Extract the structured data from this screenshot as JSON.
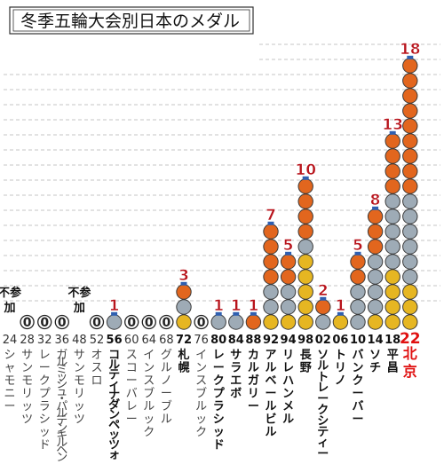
{
  "chart_data": {
    "type": "bar",
    "title": "冬季五輪大会別日本のメダル",
    "series": [
      {
        "key": "gold",
        "color": "#e6b622"
      },
      {
        "key": "silver",
        "color": "#9eabb6"
      },
      {
        "key": "bronze",
        "color": "#e2661e"
      }
    ],
    "no_participation_label": "不参加",
    "categories": [
      {
        "year": "24",
        "city": "シャモニー",
        "gold": 0,
        "silver": 0,
        "bronze": 0,
        "total": null,
        "no_participation": true
      },
      {
        "year": "28",
        "city": "サンモリッツ",
        "gold": 0,
        "silver": 0,
        "bronze": 0,
        "total": "0"
      },
      {
        "year": "32",
        "city": "レークプラシッド",
        "gold": 0,
        "silver": 0,
        "bronze": 0,
        "total": "0"
      },
      {
        "year": "36",
        "city": "ガルミッシュ・パルテンキルヘン",
        "gold": 0,
        "silver": 0,
        "bronze": 0,
        "total": "0"
      },
      {
        "year": "48",
        "city": "サンモリッツ",
        "gold": 0,
        "silver": 0,
        "bronze": 0,
        "total": null,
        "no_participation": true
      },
      {
        "year": "52",
        "city": "オスロ",
        "gold": 0,
        "silver": 0,
        "bronze": 0,
        "total": "0"
      },
      {
        "year": "56",
        "city": "コルティナダンペッツォ",
        "gold": 0,
        "silver": 1,
        "bronze": 0,
        "total": "1",
        "dark": true
      },
      {
        "year": "60",
        "city": "スコーバレー",
        "gold": 0,
        "silver": 0,
        "bronze": 0,
        "total": "0"
      },
      {
        "year": "64",
        "city": "インスブルック",
        "gold": 0,
        "silver": 0,
        "bronze": 0,
        "total": "0"
      },
      {
        "year": "68",
        "city": "グルノーブル",
        "gold": 0,
        "silver": 0,
        "bronze": 0,
        "total": "0"
      },
      {
        "year": "72",
        "city": "札幌",
        "gold": 1,
        "silver": 1,
        "bronze": 1,
        "total": "3",
        "dark": true
      },
      {
        "year": "76",
        "city": "インスブルック",
        "gold": 0,
        "silver": 0,
        "bronze": 0,
        "total": "0"
      },
      {
        "year": "80",
        "city": "レークプラシッド",
        "gold": 0,
        "silver": 1,
        "bronze": 0,
        "total": "1",
        "dark": true
      },
      {
        "year": "84",
        "city": "サラエボ",
        "gold": 0,
        "silver": 1,
        "bronze": 0,
        "total": "1",
        "dark": true
      },
      {
        "year": "88",
        "city": "カルガリー",
        "gold": 0,
        "silver": 0,
        "bronze": 1,
        "total": "1",
        "dark": true
      },
      {
        "year": "92",
        "city": "アルベールビル",
        "gold": 1,
        "silver": 2,
        "bronze": 4,
        "total": "7",
        "dark": true
      },
      {
        "year": "94",
        "city": "リレハンメル",
        "gold": 1,
        "silver": 2,
        "bronze": 2,
        "total": "5",
        "dark": true
      },
      {
        "year": "98",
        "city": "長野",
        "gold": 5,
        "silver": 1,
        "bronze": 4,
        "total": "10",
        "dark": true
      },
      {
        "year": "02",
        "city": "ソルトレークシティー",
        "gold": 0,
        "silver": 1,
        "bronze": 1,
        "total": "2",
        "dark": true
      },
      {
        "year": "06",
        "city": "トリノ",
        "gold": 1,
        "silver": 0,
        "bronze": 0,
        "total": "1",
        "dark": true
      },
      {
        "year": "10",
        "city": "バンクーバー",
        "gold": 0,
        "silver": 3,
        "bronze": 2,
        "total": "5",
        "dark": true
      },
      {
        "year": "14",
        "city": "ソチ",
        "gold": 1,
        "silver": 4,
        "bronze": 3,
        "total": "8",
        "dark": true
      },
      {
        "year": "18",
        "city": "平昌",
        "gold": 4,
        "silver": 5,
        "bronze": 4,
        "total": "13",
        "dark": true
      },
      {
        "year": "22",
        "city": "北京",
        "gold": 3,
        "silver": 6,
        "bronze": 9,
        "total": "18",
        "red": true
      }
    ]
  }
}
